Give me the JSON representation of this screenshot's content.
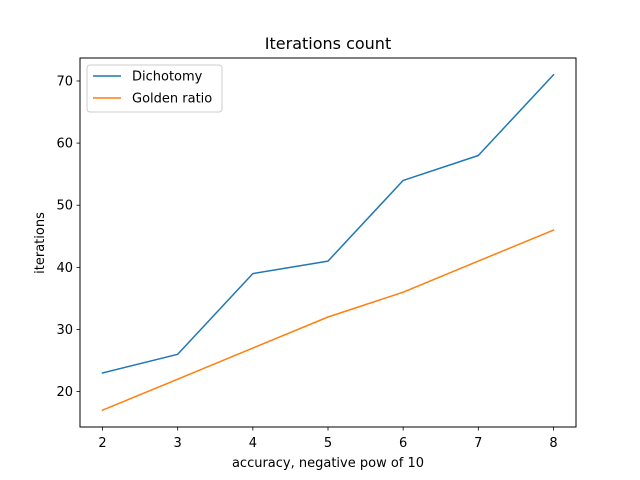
{
  "chart_data": {
    "type": "line",
    "title": "Iterations count",
    "xlabel": "accuracy, negative pow of 10",
    "ylabel": "iterations",
    "x": [
      2,
      3,
      4,
      5,
      6,
      7,
      8
    ],
    "xlim": [
      1.7,
      8.3
    ],
    "ylim": [
      14.3,
      73.7
    ],
    "xticks": [
      2,
      3,
      4,
      5,
      6,
      7,
      8
    ],
    "yticks": [
      20,
      30,
      40,
      50,
      60,
      70
    ],
    "grid": false,
    "legend_position": "top-left",
    "series": [
      {
        "name": "Dichotomy",
        "color": "#1f77b4",
        "values": [
          23,
          26,
          39,
          41,
          54,
          58,
          71
        ]
      },
      {
        "name": "Golden ratio",
        "color": "#ff7f0e",
        "values": [
          17,
          22,
          27,
          32,
          36,
          41,
          46
        ]
      }
    ]
  }
}
